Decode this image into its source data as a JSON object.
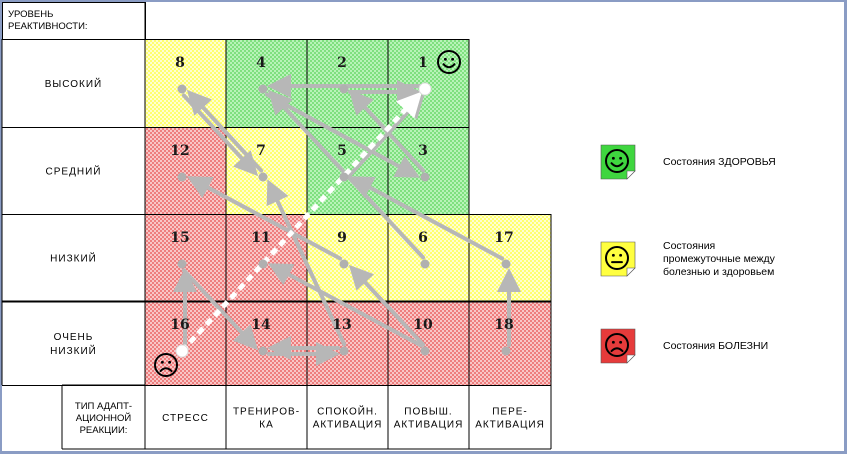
{
  "axis": {
    "y_title_lines": [
      "УРОВЕНЬ",
      "РЕАКТИВНОСТИ:"
    ],
    "x_title_lines": [
      "ТИП АДАПТ-",
      "АЦИОННОЙ",
      "РЕАКЦИИ:"
    ],
    "levels": [
      {
        "lines": [
          "ВЫСОКИЙ"
        ]
      },
      {
        "lines": [
          "СРЕДНИЙ"
        ]
      },
      {
        "lines": [
          "НИЗКИЙ"
        ]
      },
      {
        "lines": [
          "ОЧЕНЬ",
          "НИЗКИЙ"
        ]
      }
    ],
    "reactions": [
      {
        "lines": [
          "СТРЕСС"
        ]
      },
      {
        "lines": [
          "ТРЕНИРОВ-",
          "КА"
        ]
      },
      {
        "lines": [
          "СПОКОЙН.",
          "АКТИВАЦИЯ"
        ]
      },
      {
        "lines": [
          "ПОВЫШ.",
          "АКТИВАЦИЯ"
        ]
      },
      {
        "lines": [
          "ПЕРЕ-",
          "АКТИВАЦИЯ"
        ]
      }
    ]
  },
  "cells": [
    {
      "row": 0,
      "col": 0,
      "zone": "yellow"
    },
    {
      "row": 0,
      "col": 1,
      "zone": "green"
    },
    {
      "row": 0,
      "col": 2,
      "zone": "green"
    },
    {
      "row": 0,
      "col": 3,
      "zone": "green"
    },
    {
      "row": 1,
      "col": 0,
      "zone": "red"
    },
    {
      "row": 1,
      "col": 1,
      "zone": "yellow"
    },
    {
      "row": 1,
      "col": 2,
      "zone": "green"
    },
    {
      "row": 1,
      "col": 3,
      "zone": "green"
    },
    {
      "row": 2,
      "col": 0,
      "zone": "red"
    },
    {
      "row": 2,
      "col": 1,
      "zone": "red"
    },
    {
      "row": 2,
      "col": 2,
      "zone": "yellow"
    },
    {
      "row": 2,
      "col": 3,
      "zone": "yellow"
    },
    {
      "row": 2,
      "col": 4,
      "zone": "yellow"
    },
    {
      "row": 3,
      "col": 0,
      "zone": "red"
    },
    {
      "row": 3,
      "col": 1,
      "zone": "red"
    },
    {
      "row": 3,
      "col": 2,
      "zone": "red"
    },
    {
      "row": 3,
      "col": 3,
      "zone": "red"
    },
    {
      "row": 3,
      "col": 4,
      "zone": "red"
    }
  ],
  "states": [
    {
      "id": "1",
      "row": 0,
      "col": 3
    },
    {
      "id": "2",
      "row": 0,
      "col": 2
    },
    {
      "id": "3",
      "row": 1,
      "col": 3
    },
    {
      "id": "4",
      "row": 0,
      "col": 1
    },
    {
      "id": "5",
      "row": 1,
      "col": 2
    },
    {
      "id": "6",
      "row": 2,
      "col": 3
    },
    {
      "id": "7",
      "row": 1,
      "col": 1
    },
    {
      "id": "8",
      "row": 0,
      "col": 0
    },
    {
      "id": "9",
      "row": 2,
      "col": 2
    },
    {
      "id": "10",
      "row": 3,
      "col": 3
    },
    {
      "id": "11",
      "row": 2,
      "col": 1
    },
    {
      "id": "12",
      "row": 1,
      "col": 0
    },
    {
      "id": "13",
      "row": 3,
      "col": 2
    },
    {
      "id": "14",
      "row": 3,
      "col": 1
    },
    {
      "id": "15",
      "row": 2,
      "col": 0
    },
    {
      "id": "16",
      "row": 3,
      "col": 0
    },
    {
      "id": "17",
      "row": 2,
      "col": 4
    },
    {
      "id": "18",
      "row": 3,
      "col": 4
    }
  ],
  "transitions": [
    {
      "from": "8",
      "to": "7"
    },
    {
      "from": "7",
      "to": "8"
    },
    {
      "from": "2",
      "to": "1"
    },
    {
      "from": "1",
      "to": "4"
    },
    {
      "from": "4",
      "to": "3"
    },
    {
      "from": "3",
      "to": "2"
    },
    {
      "from": "5",
      "to": "1"
    },
    {
      "from": "9",
      "to": "12"
    },
    {
      "from": "6",
      "to": "4"
    },
    {
      "from": "17",
      "to": "5"
    },
    {
      "from": "18",
      "to": "17"
    },
    {
      "from": "10",
      "to": "9"
    },
    {
      "from": "10",
      "to": "11"
    },
    {
      "from": "15",
      "to": "14"
    },
    {
      "from": "16",
      "to": "15"
    },
    {
      "from": "13",
      "to": "14"
    },
    {
      "from": "14",
      "to": "13"
    },
    {
      "from": "13",
      "to": "7"
    }
  ],
  "recovery_path": {
    "from": "16",
    "to": "1"
  },
  "smileys": [
    {
      "at_state": "1",
      "mood": "happy"
    },
    {
      "at_state": "16",
      "mood": "sad"
    }
  ],
  "legend": [
    {
      "mood": "happy",
      "color": "#3fd63f",
      "lines": [
        "Состояния  ЗДОРОВЬЯ"
      ]
    },
    {
      "mood": "neutral",
      "color": "#ffff40",
      "lines": [
        "Состояния",
        "промежуточные между",
        "болезнью и здоровьем"
      ]
    },
    {
      "mood": "sad",
      "color": "#e63b3b",
      "lines": [
        "Состояния  БОЛЕЗНИ"
      ]
    }
  ],
  "colors": {
    "green": "#8ee88e",
    "yellow": "#ffff9c",
    "red": "#ef9a9a",
    "arrow": "#b7b7b7",
    "path": "#ffffff"
  }
}
